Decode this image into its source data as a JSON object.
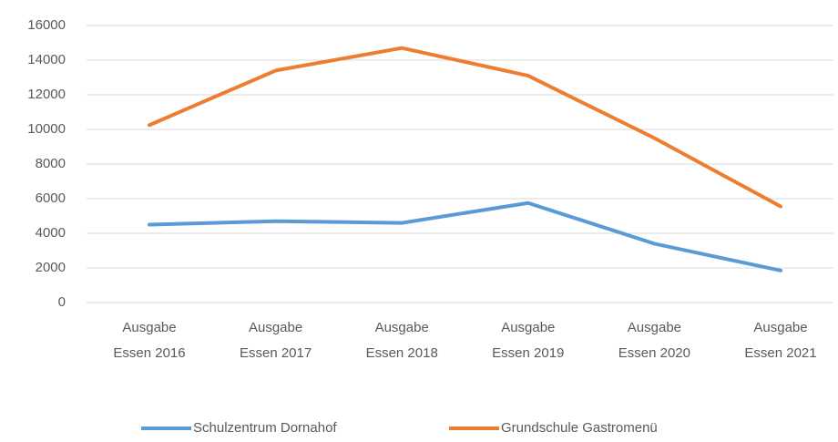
{
  "chart_data": {
    "type": "line",
    "categories": [
      "Ausgabe Essen 2016",
      "Ausgabe Essen 2017",
      "Ausgabe Essen 2018",
      "Ausgabe Essen 2019",
      "Ausgabe Essen 2020",
      "Ausgabe Essen 2021"
    ],
    "series": [
      {
        "name": "Schulzentrum Dornahof",
        "color": "#5b9bd5",
        "values": [
          4500,
          4700,
          4600,
          5750,
          3400,
          1850
        ]
      },
      {
        "name": "Grundschule Gastromenü",
        "color": "#ed7d31",
        "values": [
          10250,
          13400,
          14700,
          13100,
          9500,
          5550
        ]
      }
    ],
    "ylim": [
      0,
      16000
    ],
    "yticks": [
      0,
      2000,
      4000,
      6000,
      8000,
      10000,
      12000,
      14000,
      16000
    ],
    "grid": true,
    "legend": "bottom"
  }
}
